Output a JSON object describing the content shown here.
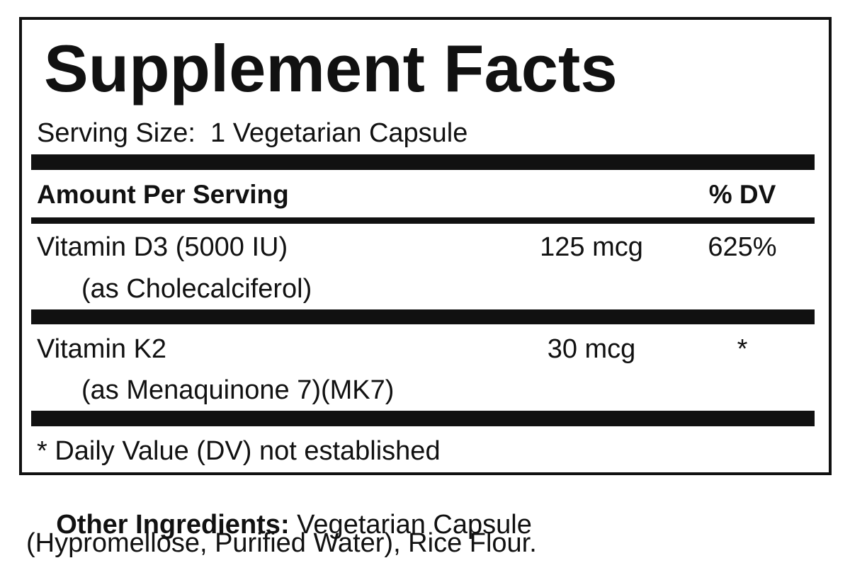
{
  "title": "Supplement Facts",
  "serving_size": "Serving Size:  1 Vegetarian Capsule",
  "header": {
    "amount": "Amount Per Serving",
    "dv": "% DV"
  },
  "rows": [
    {
      "name": "Vitamin D3 (5000 IU)",
      "source": "(as Cholecalciferol)",
      "amount": "125 mcg",
      "dv": "625%"
    },
    {
      "name": "Vitamin K2",
      "source": "(as Menaquinone 7)(MK7)",
      "amount": "30 mcg",
      "dv": "*"
    }
  ],
  "footnote": "* Daily Value (DV) not established",
  "other_ingredients": {
    "label": "Other Ingredients:",
    "lines": [
      "Vegetarian Capsule",
      "(Hypromellose, Purified Water), Rice Flour."
    ]
  }
}
